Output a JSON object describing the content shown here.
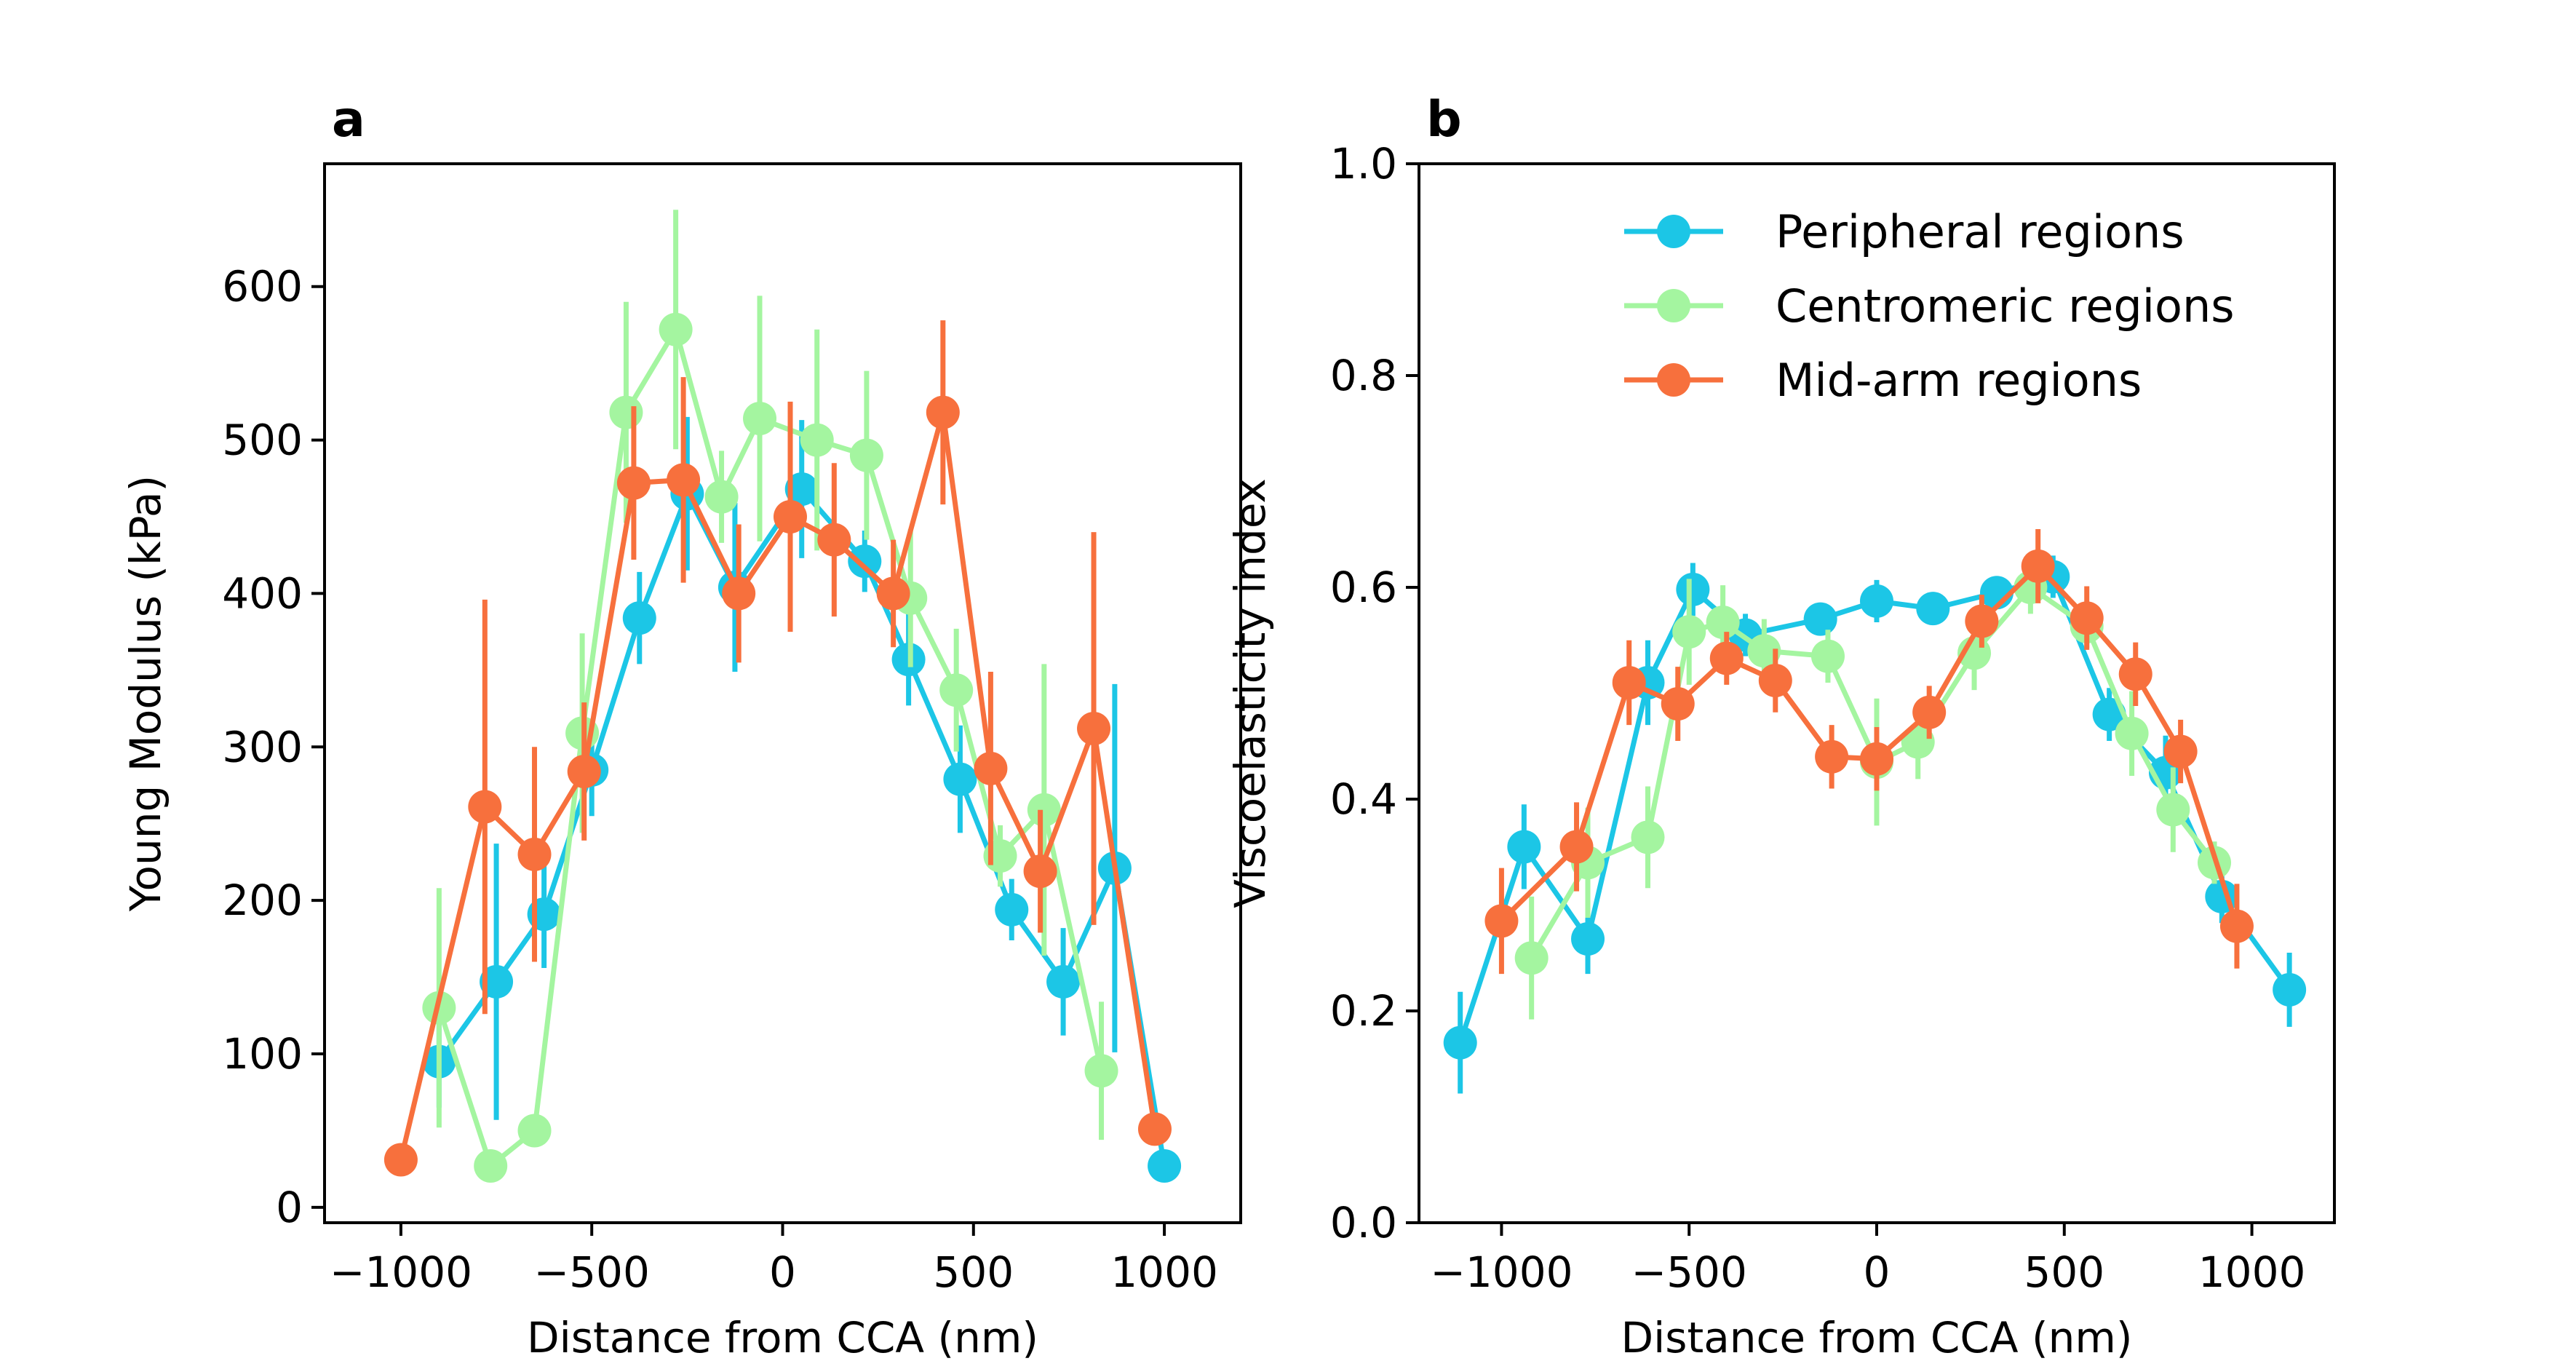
{
  "colors": {
    "peripheral": "#1cc6e6",
    "centromeric": "#a4f5a0",
    "midarm": "#f7703d"
  },
  "chart_data": [
    {
      "type": "line",
      "panel_label": "a",
      "xlabel": "Distance from CCA (nm)",
      "ylabel": "Young Modulus (kPa)",
      "xlim": [
        -1200,
        1200
      ],
      "ylim": [
        -10,
        680
      ],
      "xticks": [
        -1000,
        -500,
        0,
        500,
        1000
      ],
      "xtick_labels": [
        "−1000",
        "−500",
        "0",
        "500",
        "1000"
      ],
      "yticks": [
        0,
        100,
        200,
        300,
        400,
        500,
        600
      ],
      "ytick_labels": [
        "0",
        "100",
        "200",
        "300",
        "400",
        "500",
        "600"
      ],
      "grid": false,
      "series": [
        {
          "name": "Peripheral regions",
          "color": "#1cc6e6",
          "x": [
            -900,
            -750,
            -625,
            -500,
            -375,
            -250,
            -125,
            50,
            215,
            330,
            465,
            600,
            735,
            870,
            1000
          ],
          "y": [
            95,
            147,
            191,
            285,
            384,
            465,
            404,
            468,
            421,
            357,
            279,
            194,
            147,
            221,
            27
          ],
          "err": [
            30,
            90,
            35,
            30,
            30,
            50,
            55,
            45,
            20,
            30,
            35,
            20,
            35,
            120,
            0
          ]
        },
        {
          "name": "Centromeric regions",
          "color": "#a4f5a0",
          "x": [
            -900,
            -765,
            -650,
            -525,
            -410,
            -280,
            -160,
            -60,
            90,
            220,
            335,
            455,
            570,
            685,
            835
          ],
          "y": [
            130,
            27,
            50,
            309,
            518,
            572,
            463,
            514,
            500,
            490,
            397,
            337,
            229,
            259,
            89
          ],
          "err": [
            78,
            0,
            0,
            65,
            72,
            78,
            30,
            80,
            72,
            55,
            45,
            40,
            20,
            95,
            45
          ]
        },
        {
          "name": "Mid-arm regions",
          "color": "#f7703d",
          "x": [
            -1000,
            -780,
            -650,
            -520,
            -390,
            -260,
            -115,
            20,
            135,
            290,
            420,
            545,
            675,
            815,
            975
          ],
          "y": [
            31,
            261,
            230,
            284,
            472,
            474,
            400,
            450,
            435,
            400,
            518,
            286,
            219,
            312,
            51
          ],
          "err": [
            0,
            135,
            70,
            45,
            50,
            67,
            45,
            75,
            50,
            35,
            60,
            63,
            40,
            128,
            0
          ]
        }
      ]
    },
    {
      "type": "line",
      "panel_label": "b",
      "xlabel": "Distance from CCA (nm)",
      "ylabel": "Viscoelasticity index",
      "xlim": [
        -1220,
        1220
      ],
      "ylim": [
        0.0,
        1.0
      ],
      "xticks": [
        -1000,
        -500,
        0,
        500,
        1000
      ],
      "xtick_labels": [
        "−1000",
        "−500",
        "0",
        "500",
        "1000"
      ],
      "yticks": [
        0.0,
        0.2,
        0.4,
        0.6,
        0.8,
        1.0
      ],
      "ytick_labels": [
        "0.0",
        "0.2",
        "0.4",
        "0.6",
        "0.8",
        "1.0"
      ],
      "grid": false,
      "legend": {
        "placement": "top-right",
        "entries": [
          "Peripheral regions",
          "Centromeric regions",
          "Mid-arm regions"
        ]
      },
      "series": [
        {
          "name": "Peripheral regions",
          "color": "#1cc6e6",
          "x": [
            -1110,
            -940,
            -770,
            -610,
            -490,
            -350,
            -150,
            0,
            150,
            320,
            470,
            620,
            770,
            920,
            1100
          ],
          "y": [
            0.17,
            0.355,
            0.268,
            0.51,
            0.598,
            0.555,
            0.57,
            0.587,
            0.58,
            0.595,
            0.61,
            0.48,
            0.425,
            0.308,
            0.22
          ],
          "err": [
            0.048,
            0.04,
            0.033,
            0.04,
            0.025,
            0.02,
            0.012,
            0.02,
            0.015,
            0.015,
            0.02,
            0.025,
            0.035,
            0.025,
            0.035
          ]
        },
        {
          "name": "Centromeric regions",
          "color": "#a4f5a0",
          "x": [
            -920,
            -770,
            -610,
            -500,
            -410,
            -300,
            -130,
            0,
            110,
            260,
            410,
            560,
            680,
            790,
            900
          ],
          "y": [
            0.25,
            0.34,
            0.364,
            0.558,
            0.567,
            0.54,
            0.535,
            0.435,
            0.454,
            0.538,
            0.6,
            0.563,
            0.462,
            0.39,
            0.34
          ],
          "err": [
            0.058,
            0.052,
            0.048,
            0.05,
            0.035,
            0.03,
            0.025,
            0.06,
            0.035,
            0.035,
            0.025,
            0.02,
            0.04,
            0.04,
            0.02
          ]
        },
        {
          "name": "Mid-arm regions",
          "color": "#f7703d",
          "x": [
            -1000,
            -800,
            -660,
            -530,
            -400,
            -270,
            -120,
            0,
            140,
            280,
            430,
            560,
            690,
            810,
            960
          ],
          "y": [
            0.285,
            0.355,
            0.51,
            0.49,
            0.533,
            0.512,
            0.44,
            0.438,
            0.482,
            0.568,
            0.62,
            0.571,
            0.518,
            0.445,
            0.28
          ],
          "err": [
            0.05,
            0.042,
            0.04,
            0.035,
            0.025,
            0.03,
            0.03,
            0.03,
            0.025,
            0.025,
            0.035,
            0.03,
            0.03,
            0.03,
            0.04
          ]
        }
      ]
    }
  ]
}
